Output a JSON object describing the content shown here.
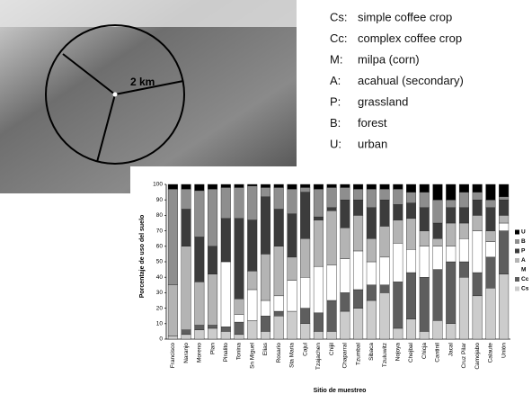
{
  "photo": {
    "scale_label": "2 km"
  },
  "land_use_key": [
    {
      "code": "Cs:",
      "label": "simple coffee crop"
    },
    {
      "code": "Cc:",
      "label": "complex coffee crop"
    },
    {
      "code": "M:",
      "label": "milpa (corn)"
    },
    {
      "code": "A:",
      "label": "acahual (secondary)"
    },
    {
      "code": "P:",
      "label": "grassland"
    },
    {
      "code": "B:",
      "label": "forest"
    },
    {
      "code": "U:",
      "label": "urban"
    }
  ],
  "chart_data": {
    "type": "stacked_bar",
    "y_label": "Porcentaje de uso del suelo",
    "x_label": "Sitio de muestreo",
    "categories": [
      "Francisco",
      "Naranjo",
      "Moreno",
      "Plan",
      "Pinalito",
      "Tonina",
      "Sn Miguel",
      "Elias",
      "Rosario",
      "Sta Maria",
      "Cajul",
      "Tzajachen",
      "Chijil",
      "Chaparral",
      "Tzumbal",
      "Sibaca",
      "Tzuluwitz",
      "Nojoya",
      "Chejbal",
      "Chicja",
      "Cantinil",
      "Jacal",
      "Cruz Pilar",
      "Camojabo",
      "Calaute",
      "Unión"
    ],
    "series": [
      {
        "name": "Cs",
        "color": "#cccccc",
        "values": [
          2,
          3,
          6,
          7,
          5,
          3,
          12,
          5,
          15,
          18,
          10,
          5,
          5,
          18,
          20,
          25,
          30,
          7,
          13,
          5,
          12,
          10,
          40,
          28,
          33,
          42
        ]
      },
      {
        "name": "Cc",
        "color": "#5e5e5e",
        "values": [
          0,
          3,
          3,
          2,
          3,
          8,
          0,
          10,
          3,
          0,
          10,
          12,
          20,
          12,
          12,
          10,
          5,
          30,
          30,
          35,
          33,
          40,
          10,
          15,
          20,
          28
        ]
      },
      {
        "name": "M",
        "color": "#ffffff",
        "values": [
          0,
          0,
          0,
          0,
          42,
          5,
          20,
          10,
          10,
          20,
          20,
          30,
          23,
          22,
          25,
          15,
          18,
          25,
          15,
          20,
          15,
          10,
          15,
          27,
          10,
          5
        ]
      },
      {
        "name": "A",
        "color": "#b4b4b4",
        "values": [
          33,
          54,
          28,
          33,
          0,
          10,
          12,
          30,
          32,
          15,
          25,
          30,
          35,
          20,
          23,
          15,
          20,
          15,
          20,
          10,
          5,
          15,
          10,
          10,
          7,
          5
        ]
      },
      {
        "name": "P",
        "color": "#3c3c3c",
        "values": [
          0,
          24,
          29,
          18,
          28,
          52,
          33,
          37,
          24,
          28,
          30,
          2,
          2,
          18,
          10,
          20,
          17,
          10,
          10,
          15,
          10,
          10,
          10,
          10,
          15,
          10
        ]
      },
      {
        "name": "B",
        "color": "#8e8e8e",
        "values": [
          62,
          13,
          30,
          37,
          20,
          20,
          22,
          6,
          14,
          16,
          3,
          18,
          13,
          8,
          7,
          12,
          7,
          10,
          7,
          10,
          15,
          5,
          10,
          5,
          5,
          2
        ]
      },
      {
        "name": "U",
        "color": "#000000",
        "values": [
          3,
          3,
          4,
          3,
          2,
          2,
          1,
          2,
          2,
          3,
          2,
          3,
          2,
          2,
          3,
          3,
          3,
          3,
          5,
          5,
          10,
          10,
          5,
          5,
          10,
          8
        ]
      }
    ],
    "ylim": [
      0,
      100
    ],
    "yticks": [
      0,
      10,
      20,
      30,
      40,
      50,
      60,
      70,
      80,
      90,
      100
    ]
  }
}
